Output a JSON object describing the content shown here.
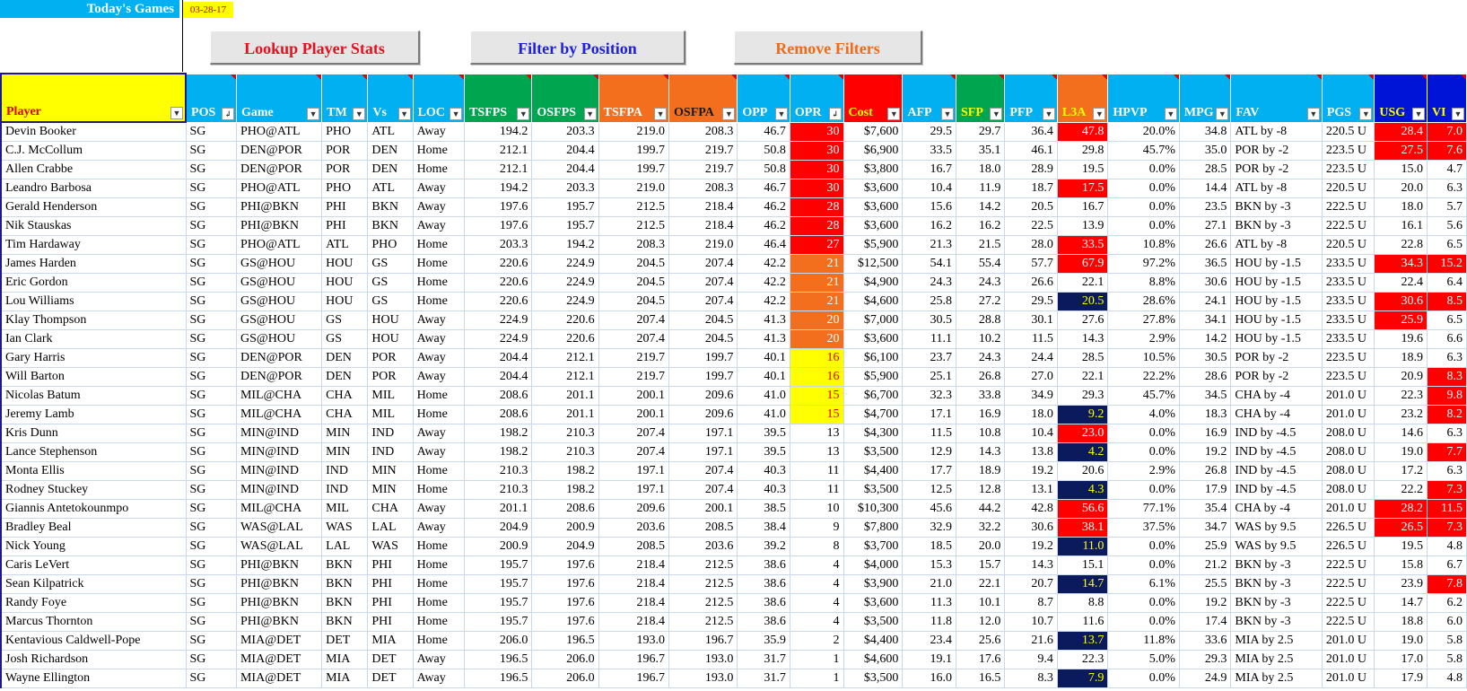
{
  "header": {
    "title": "Today's Games",
    "date": "03-28-17"
  },
  "buttons": {
    "lookup": "Lookup Player Stats",
    "filter": "Filter by Position",
    "remove": "Remove Filters"
  },
  "colors": {
    "red": "#ff0000",
    "orange": "#f36f1d",
    "yellow": "#ffff00",
    "navy": "#0a1a5c",
    "header_blue": "#00b0f0",
    "header_green": "#00a64f",
    "dark_blue": "#0014d8"
  },
  "columns": [
    "Player",
    "POS",
    "Game",
    "TM",
    "Vs",
    "LOC",
    "TSFPS",
    "OSFPS",
    "TSFPA",
    "OSFPA",
    "OPP",
    "OPR",
    "Cost",
    "AFP",
    "SFP",
    "PFP",
    "L3A",
    "HPVP",
    "MPG",
    "FAV",
    "PGS",
    "USG",
    "VI"
  ],
  "rows": [
    [
      "Devin Booker",
      "SG",
      "PHO@ATL",
      "PHO",
      "ATL",
      "Away",
      "194.2",
      "203.3",
      "219.0",
      "208.3",
      "46.7",
      "30",
      "$7,600",
      "29.5",
      "29.7",
      "36.4",
      "47.8",
      "20.0%",
      "34.8",
      "ATL by -8",
      "220.5 U",
      "28.4",
      "7.0"
    ],
    [
      "C.J. McCollum",
      "SG",
      "DEN@POR",
      "POR",
      "DEN",
      "Home",
      "212.1",
      "204.4",
      "199.7",
      "219.7",
      "50.8",
      "30",
      "$6,900",
      "33.5",
      "35.1",
      "46.1",
      "29.8",
      "45.7%",
      "35.0",
      "POR by -2",
      "223.5 U",
      "27.5",
      "7.6"
    ],
    [
      "Allen Crabbe",
      "SG",
      "DEN@POR",
      "POR",
      "DEN",
      "Home",
      "212.1",
      "204.4",
      "199.7",
      "219.7",
      "50.8",
      "30",
      "$3,800",
      "16.7",
      "18.0",
      "28.9",
      "19.5",
      "0.0%",
      "28.5",
      "POR by -2",
      "223.5 U",
      "15.0",
      "4.7"
    ],
    [
      "Leandro Barbosa",
      "SG",
      "PHO@ATL",
      "PHO",
      "ATL",
      "Away",
      "194.2",
      "203.3",
      "219.0",
      "208.3",
      "46.7",
      "30",
      "$3,600",
      "10.4",
      "11.9",
      "18.7",
      "17.5",
      "0.0%",
      "14.4",
      "ATL by -8",
      "220.5 U",
      "20.0",
      "6.3"
    ],
    [
      "Gerald Henderson",
      "SG",
      "PHI@BKN",
      "PHI",
      "BKN",
      "Away",
      "197.6",
      "195.7",
      "212.5",
      "218.4",
      "46.2",
      "28",
      "$3,600",
      "15.6",
      "14.2",
      "20.5",
      "16.7",
      "0.0%",
      "23.5",
      "BKN by -3",
      "222.5 U",
      "18.0",
      "5.7"
    ],
    [
      "Nik Stauskas",
      "SG",
      "PHI@BKN",
      "PHI",
      "BKN",
      "Away",
      "197.6",
      "195.7",
      "212.5",
      "218.4",
      "46.2",
      "28",
      "$3,600",
      "16.2",
      "16.2",
      "22.5",
      "13.9",
      "0.0%",
      "27.1",
      "BKN by -3",
      "222.5 U",
      "16.1",
      "5.6"
    ],
    [
      "Tim Hardaway",
      "SG",
      "PHO@ATL",
      "ATL",
      "PHO",
      "Home",
      "203.3",
      "194.2",
      "208.3",
      "219.0",
      "46.4",
      "27",
      "$5,900",
      "21.3",
      "21.5",
      "28.0",
      "33.5",
      "10.8%",
      "26.6",
      "ATL by -8",
      "220.5 U",
      "22.8",
      "6.5"
    ],
    [
      "James Harden",
      "SG",
      "GS@HOU",
      "HOU",
      "GS",
      "Home",
      "220.6",
      "224.9",
      "204.5",
      "207.4",
      "42.2",
      "21",
      "$12,500",
      "54.1",
      "55.4",
      "57.7",
      "67.9",
      "97.2%",
      "36.5",
      "HOU by -1.5",
      "233.5 U",
      "34.3",
      "15.2"
    ],
    [
      "Eric Gordon",
      "SG",
      "GS@HOU",
      "HOU",
      "GS",
      "Home",
      "220.6",
      "224.9",
      "204.5",
      "207.4",
      "42.2",
      "21",
      "$4,900",
      "24.3",
      "24.3",
      "26.6",
      "22.1",
      "8.8%",
      "30.6",
      "HOU by -1.5",
      "233.5 U",
      "22.4",
      "6.4"
    ],
    [
      "Lou Williams",
      "SG",
      "GS@HOU",
      "HOU",
      "GS",
      "Home",
      "220.6",
      "224.9",
      "204.5",
      "207.4",
      "42.2",
      "21",
      "$4,600",
      "25.8",
      "27.2",
      "29.5",
      "20.5",
      "28.6%",
      "24.1",
      "HOU by -1.5",
      "233.5 U",
      "30.6",
      "8.5"
    ],
    [
      "Klay Thompson",
      "SG",
      "GS@HOU",
      "GS",
      "HOU",
      "Away",
      "224.9",
      "220.6",
      "207.4",
      "204.5",
      "41.3",
      "20",
      "$7,000",
      "30.5",
      "28.8",
      "30.1",
      "27.6",
      "27.8%",
      "34.1",
      "HOU by -1.5",
      "233.5 U",
      "25.9",
      "6.5"
    ],
    [
      "Ian Clark",
      "SG",
      "GS@HOU",
      "GS",
      "HOU",
      "Away",
      "224.9",
      "220.6",
      "207.4",
      "204.5",
      "41.3",
      "20",
      "$3,600",
      "11.1",
      "10.2",
      "11.5",
      "14.3",
      "2.9%",
      "14.2",
      "HOU by -1.5",
      "233.5 U",
      "19.6",
      "6.6"
    ],
    [
      "Gary Harris",
      "SG",
      "DEN@POR",
      "DEN",
      "POR",
      "Away",
      "204.4",
      "212.1",
      "219.7",
      "199.7",
      "40.1",
      "16",
      "$6,100",
      "23.7",
      "24.3",
      "24.4",
      "28.5",
      "10.5%",
      "30.5",
      "POR by -2",
      "223.5 U",
      "18.9",
      "6.3"
    ],
    [
      "Will Barton",
      "SG",
      "DEN@POR",
      "DEN",
      "POR",
      "Away",
      "204.4",
      "212.1",
      "219.7",
      "199.7",
      "40.1",
      "16",
      "$5,900",
      "25.1",
      "26.8",
      "27.0",
      "22.1",
      "22.2%",
      "28.6",
      "POR by -2",
      "223.5 U",
      "20.9",
      "8.3"
    ],
    [
      "Nicolas Batum",
      "SG",
      "MIL@CHA",
      "CHA",
      "MIL",
      "Home",
      "208.6",
      "201.1",
      "200.1",
      "209.6",
      "41.0",
      "15",
      "$6,700",
      "32.3",
      "33.8",
      "34.9",
      "29.3",
      "45.7%",
      "34.5",
      "CHA by -4",
      "201.0 U",
      "22.3",
      "9.8"
    ],
    [
      "Jeremy Lamb",
      "SG",
      "MIL@CHA",
      "CHA",
      "MIL",
      "Home",
      "208.6",
      "201.1",
      "200.1",
      "209.6",
      "41.0",
      "15",
      "$4,700",
      "17.1",
      "16.9",
      "18.0",
      "9.2",
      "4.0%",
      "18.3",
      "CHA by -4",
      "201.0 U",
      "23.2",
      "8.2"
    ],
    [
      "Kris Dunn",
      "SG",
      "MIN@IND",
      "MIN",
      "IND",
      "Away",
      "198.2",
      "210.3",
      "207.4",
      "197.1",
      "39.5",
      "13",
      "$4,300",
      "11.5",
      "10.8",
      "10.4",
      "23.0",
      "0.0%",
      "16.9",
      "IND by -4.5",
      "208.0 U",
      "14.6",
      "6.3"
    ],
    [
      "Lance Stephenson",
      "SG",
      "MIN@IND",
      "MIN",
      "IND",
      "Away",
      "198.2",
      "210.3",
      "207.4",
      "197.1",
      "39.5",
      "13",
      "$3,500",
      "12.9",
      "14.3",
      "13.8",
      "4.2",
      "0.0%",
      "19.2",
      "IND by -4.5",
      "208.0 U",
      "19.0",
      "7.7"
    ],
    [
      "Monta Ellis",
      "SG",
      "MIN@IND",
      "IND",
      "MIN",
      "Home",
      "210.3",
      "198.2",
      "197.1",
      "207.4",
      "40.3",
      "11",
      "$4,400",
      "17.7",
      "18.9",
      "19.2",
      "20.6",
      "2.9%",
      "26.8",
      "IND by -4.5",
      "208.0 U",
      "17.2",
      "6.3"
    ],
    [
      "Rodney Stuckey",
      "SG",
      "MIN@IND",
      "IND",
      "MIN",
      "Home",
      "210.3",
      "198.2",
      "197.1",
      "207.4",
      "40.3",
      "11",
      "$3,500",
      "12.5",
      "12.8",
      "13.1",
      "4.3",
      "0.0%",
      "17.9",
      "IND by -4.5",
      "208.0 U",
      "22.2",
      "7.3"
    ],
    [
      "Giannis Antetokounmpo",
      "SG",
      "MIL@CHA",
      "MIL",
      "CHA",
      "Away",
      "201.1",
      "208.6",
      "209.6",
      "200.1",
      "38.5",
      "10",
      "$10,300",
      "45.6",
      "44.2",
      "42.8",
      "56.6",
      "77.1%",
      "35.4",
      "CHA by -4",
      "201.0 U",
      "28.2",
      "11.5"
    ],
    [
      "Bradley Beal",
      "SG",
      "WAS@LAL",
      "WAS",
      "LAL",
      "Away",
      "204.9",
      "200.9",
      "203.6",
      "208.5",
      "38.4",
      "9",
      "$7,800",
      "32.9",
      "32.2",
      "30.6",
      "38.1",
      "37.5%",
      "34.7",
      "WAS by 9.5",
      "226.5 U",
      "26.5",
      "7.3"
    ],
    [
      "Nick Young",
      "SG",
      "WAS@LAL",
      "LAL",
      "WAS",
      "Home",
      "200.9",
      "204.9",
      "208.5",
      "203.6",
      "39.2",
      "8",
      "$3,700",
      "18.5",
      "20.0",
      "19.2",
      "11.0",
      "0.0%",
      "25.9",
      "WAS by 9.5",
      "226.5 U",
      "19.5",
      "4.8"
    ],
    [
      "Caris LeVert",
      "SG",
      "PHI@BKN",
      "BKN",
      "PHI",
      "Home",
      "195.7",
      "197.6",
      "218.4",
      "212.5",
      "38.6",
      "4",
      "$4,000",
      "15.3",
      "15.7",
      "14.3",
      "15.1",
      "0.0%",
      "21.2",
      "BKN by -3",
      "222.5 U",
      "15.8",
      "6.7"
    ],
    [
      "Sean Kilpatrick",
      "SG",
      "PHI@BKN",
      "BKN",
      "PHI",
      "Home",
      "195.7",
      "197.6",
      "218.4",
      "212.5",
      "38.6",
      "4",
      "$3,900",
      "21.0",
      "22.1",
      "20.7",
      "14.7",
      "6.1%",
      "25.5",
      "BKN by -3",
      "222.5 U",
      "23.9",
      "7.8"
    ],
    [
      "Randy Foye",
      "SG",
      "PHI@BKN",
      "BKN",
      "PHI",
      "Home",
      "195.7",
      "197.6",
      "218.4",
      "212.5",
      "38.6",
      "4",
      "$3,600",
      "11.3",
      "10.1",
      "8.7",
      "8.8",
      "0.0%",
      "19.2",
      "BKN by -3",
      "222.5 U",
      "14.7",
      "6.2"
    ],
    [
      "Marcus Thornton",
      "SG",
      "PHI@BKN",
      "BKN",
      "PHI",
      "Home",
      "195.7",
      "197.6",
      "218.4",
      "212.5",
      "38.6",
      "4",
      "$3,500",
      "11.8",
      "12.0",
      "10.7",
      "11.6",
      "0.0%",
      "17.4",
      "BKN by -3",
      "222.5 U",
      "18.8",
      "6.0"
    ],
    [
      "Kentavious Caldwell-Pope",
      "SG",
      "MIA@DET",
      "DET",
      "MIA",
      "Home",
      "206.0",
      "196.5",
      "193.0",
      "196.7",
      "35.9",
      "2",
      "$4,400",
      "23.4",
      "25.6",
      "21.6",
      "13.7",
      "11.8%",
      "33.6",
      "MIA by 2.5",
      "201.0 U",
      "19.0",
      "5.8"
    ],
    [
      "Josh Richardson",
      "SG",
      "MIA@DET",
      "MIA",
      "DET",
      "Away",
      "196.5",
      "206.0",
      "196.7",
      "193.0",
      "31.7",
      "1",
      "$4,600",
      "19.1",
      "17.6",
      "9.4",
      "22.3",
      "5.0%",
      "29.3",
      "MIA by 2.5",
      "201.0 U",
      "17.0",
      "5.8"
    ],
    [
      "Wayne Ellington",
      "SG",
      "MIA@DET",
      "MIA",
      "DET",
      "Away",
      "196.5",
      "206.0",
      "196.7",
      "193.0",
      "31.7",
      "1",
      "$3,500",
      "16.0",
      "16.5",
      "8.3",
      "7.9",
      "0.0%",
      "24.9",
      "MIA by 2.5",
      "201.0 U",
      "17.9",
      "4.8"
    ]
  ]
}
